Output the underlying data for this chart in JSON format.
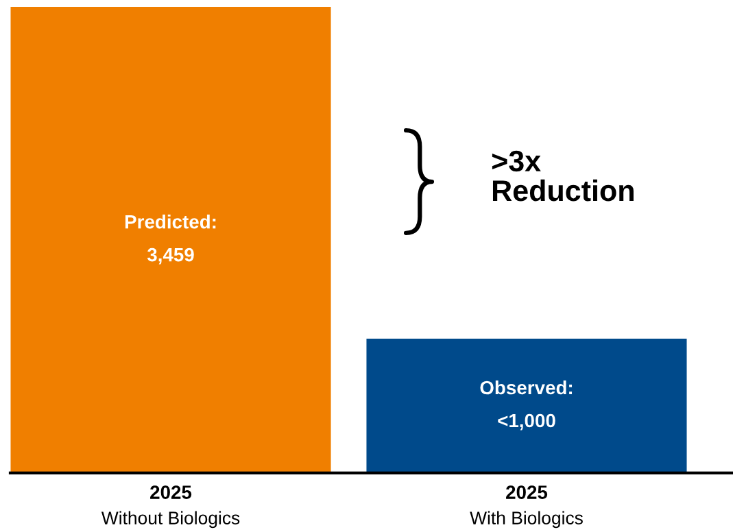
{
  "chart_data": {
    "type": "bar",
    "categories": [
      "2025\nWithout Biologics",
      "2025\nWith Biologics"
    ],
    "values": [
      3459,
      997
    ],
    "colors": [
      "#f07f00",
      "#004a8b"
    ],
    "value_labels": [
      "Predicted:\n3,459",
      "Observed:\n<1,000"
    ],
    "annotations": [
      ">3x\nReduction"
    ],
    "grid": false,
    "legend": false
  }
}
